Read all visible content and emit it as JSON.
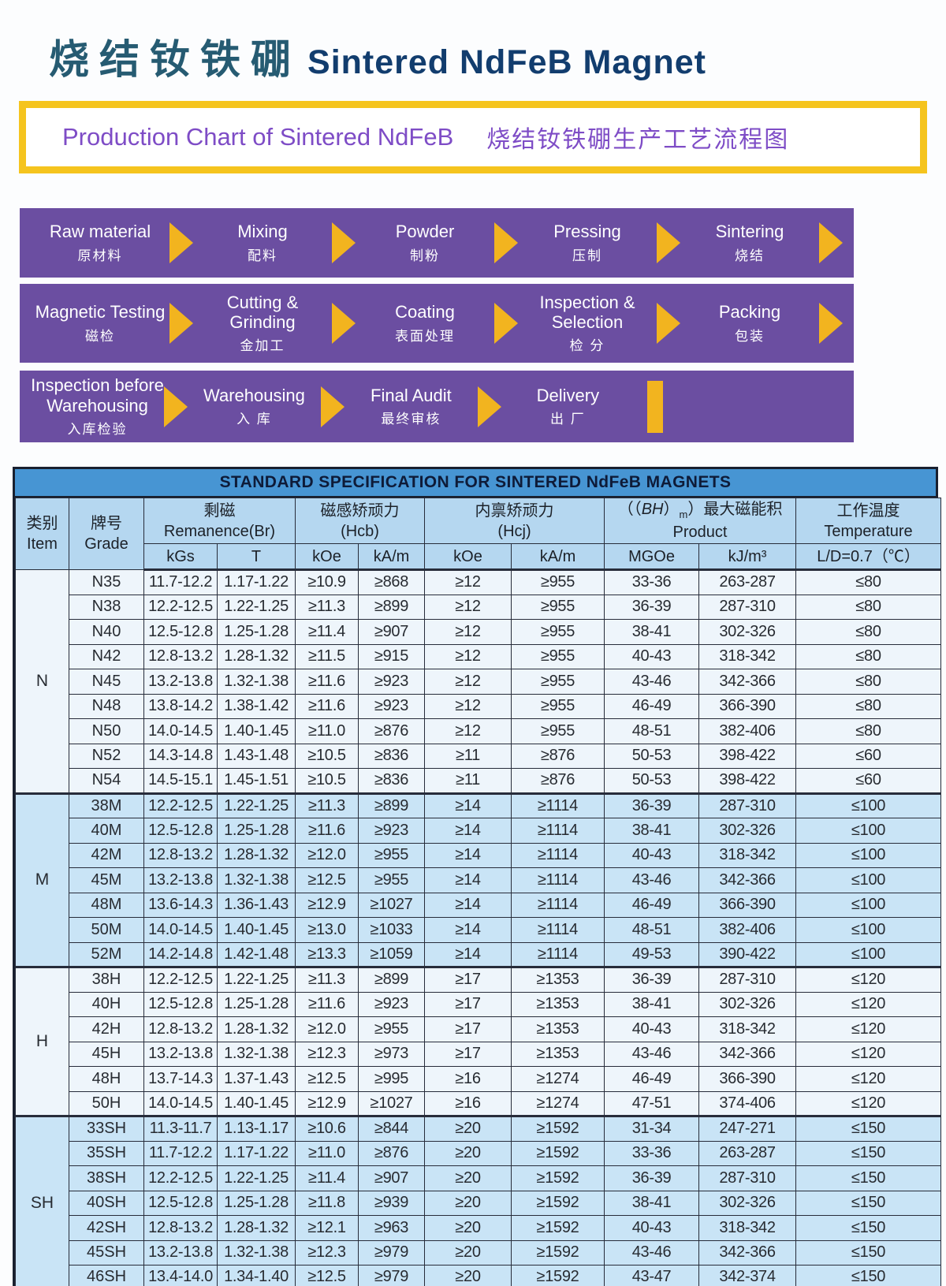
{
  "header": {
    "title_cn": "烧结钕铁硼",
    "title_en": "Sintered NdFeB Magnet"
  },
  "banner": {
    "en": "Production Chart of Sintered NdFeB",
    "cn": "烧结钕铁硼生产工艺流程图"
  },
  "flow": {
    "rows": [
      {
        "end": "arrow",
        "steps": [
          {
            "en": "Raw material",
            "cn": "原材料"
          },
          {
            "en": "Mixing",
            "cn": "配料"
          },
          {
            "en": "Powder",
            "cn": "制粉"
          },
          {
            "en": "Pressing",
            "cn": "压制"
          },
          {
            "en": "Sintering",
            "cn": "烧结"
          }
        ]
      },
      {
        "end": "arrow",
        "steps": [
          {
            "en": "Magnetic Testing",
            "cn": "磁检"
          },
          {
            "en": "Cutting & Grinding",
            "cn": "金加工"
          },
          {
            "en": "Coating",
            "cn": "表面处理"
          },
          {
            "en": "Inspection & Selection",
            "cn": "检 分"
          },
          {
            "en": "Packing",
            "cn": "包装"
          }
        ]
      },
      {
        "end": "bar",
        "steps": [
          {
            "en": "Inspection before Warehousing",
            "cn": "入库检验"
          },
          {
            "en": "Warehousing",
            "cn": "入 库"
          },
          {
            "en": "Final Audit",
            "cn": "最终审核"
          },
          {
            "en": "Delivery",
            "cn": "出 厂"
          }
        ]
      }
    ]
  },
  "table": {
    "title": "STANDARD SPECIFICATION FOR SINTERED NdFeB MAGNETS",
    "columns": {
      "item_cn": "类别",
      "item_en": "Item",
      "grade_cn": "牌号",
      "grade_en": "Grade",
      "remanence_cn": "剩磁",
      "remanence_en": "Remanence(Br)",
      "hcb_cn": "磁感矫顽力",
      "hcb_en": "(Hcb)",
      "hcj_cn": "内禀矫顽力",
      "hcj_en": "(Hcj)",
      "product_pre": "（（",
      "product_bh": "BH",
      "product_mid": "）",
      "product_sub": "m",
      "product_post": "）最大磁能积",
      "product_en": "Product",
      "temperature_cn": "工作温度",
      "temperature_en": "Temperature"
    },
    "units": [
      "kGs",
      "T",
      "kOe",
      "kA/m",
      "kOe",
      "kA/m",
      "MGOe",
      "kJ/m³",
      "L/D=0.7（℃）"
    ],
    "groups": [
      {
        "item": "N",
        "rows": [
          [
            "N35",
            "11.7-12.2",
            "1.17-1.22",
            "≥10.9",
            "≥868",
            "≥12",
            "≥955",
            "33-36",
            "263-287",
            "≤80"
          ],
          [
            "N38",
            "12.2-12.5",
            "1.22-1.25",
            "≥11.3",
            "≥899",
            "≥12",
            "≥955",
            "36-39",
            "287-310",
            "≤80"
          ],
          [
            "N40",
            "12.5-12.8",
            "1.25-1.28",
            "≥11.4",
            "≥907",
            "≥12",
            "≥955",
            "38-41",
            "302-326",
            "≤80"
          ],
          [
            "N42",
            "12.8-13.2",
            "1.28-1.32",
            "≥11.5",
            "≥915",
            "≥12",
            "≥955",
            "40-43",
            "318-342",
            "≤80"
          ],
          [
            "N45",
            "13.2-13.8",
            "1.32-1.38",
            "≥11.6",
            "≥923",
            "≥12",
            "≥955",
            "43-46",
            "342-366",
            "≤80"
          ],
          [
            "N48",
            "13.8-14.2",
            "1.38-1.42",
            "≥11.6",
            "≥923",
            "≥12",
            "≥955",
            "46-49",
            "366-390",
            "≤80"
          ],
          [
            "N50",
            "14.0-14.5",
            "1.40-1.45",
            "≥11.0",
            "≥876",
            "≥12",
            "≥955",
            "48-51",
            "382-406",
            "≤80"
          ],
          [
            "N52",
            "14.3-14.8",
            "1.43-1.48",
            "≥10.5",
            "≥836",
            "≥11",
            "≥876",
            "50-53",
            "398-422",
            "≤60"
          ],
          [
            "N54",
            "14.5-15.1",
            "1.45-1.51",
            "≥10.5",
            "≥836",
            "≥11",
            "≥876",
            "50-53",
            "398-422",
            "≤60"
          ]
        ]
      },
      {
        "item": "M",
        "rows": [
          [
            "38M",
            "12.2-12.5",
            "1.22-1.25",
            "≥11.3",
            "≥899",
            "≥14",
            "≥1114",
            "36-39",
            "287-310",
            "≤100"
          ],
          [
            "40M",
            "12.5-12.8",
            "1.25-1.28",
            "≥11.6",
            "≥923",
            "≥14",
            "≥1114",
            "38-41",
            "302-326",
            "≤100"
          ],
          [
            "42M",
            "12.8-13.2",
            "1.28-1.32",
            "≥12.0",
            "≥955",
            "≥14",
            "≥1114",
            "40-43",
            "318-342",
            "≤100"
          ],
          [
            "45M",
            "13.2-13.8",
            "1.32-1.38",
            "≥12.5",
            "≥955",
            "≥14",
            "≥1114",
            "43-46",
            "342-366",
            "≤100"
          ],
          [
            "48M",
            "13.6-14.3",
            "1.36-1.43",
            "≥12.9",
            "≥1027",
            "≥14",
            "≥1114",
            "46-49",
            "366-390",
            "≤100"
          ],
          [
            "50M",
            "14.0-14.5",
            "1.40-1.45",
            "≥13.0",
            "≥1033",
            "≥14",
            "≥1114",
            "48-51",
            "382-406",
            "≤100"
          ],
          [
            "52M",
            "14.2-14.8",
            "1.42-1.48",
            "≥13.3",
            "≥1059",
            "≥14",
            "≥1114",
            "49-53",
            "390-422",
            "≤100"
          ]
        ]
      },
      {
        "item": "H",
        "rows": [
          [
            "38H",
            "12.2-12.5",
            "1.22-1.25",
            "≥11.3",
            "≥899",
            "≥17",
            "≥1353",
            "36-39",
            "287-310",
            "≤120"
          ],
          [
            "40H",
            "12.5-12.8",
            "1.25-1.28",
            "≥11.6",
            "≥923",
            "≥17",
            "≥1353",
            "38-41",
            "302-326",
            "≤120"
          ],
          [
            "42H",
            "12.8-13.2",
            "1.28-1.32",
            "≥12.0",
            "≥955",
            "≥17",
            "≥1353",
            "40-43",
            "318-342",
            "≤120"
          ],
          [
            "45H",
            "13.2-13.8",
            "1.32-1.38",
            "≥12.3",
            "≥973",
            "≥17",
            "≥1353",
            "43-46",
            "342-366",
            "≤120"
          ],
          [
            "48H",
            "13.7-14.3",
            "1.37-1.43",
            "≥12.5",
            "≥995",
            "≥16",
            "≥1274",
            "46-49",
            "366-390",
            "≤120"
          ],
          [
            "50H",
            "14.0-14.5",
            "1.40-1.45",
            "≥12.9",
            "≥1027",
            "≥16",
            "≥1274",
            "47-51",
            "374-406",
            "≤120"
          ]
        ]
      },
      {
        "item": "SH",
        "rows": [
          [
            "33SH",
            "11.3-11.7",
            "1.13-1.17",
            "≥10.6",
            "≥844",
            "≥20",
            "≥1592",
            "31-34",
            "247-271",
            "≤150"
          ],
          [
            "35SH",
            "11.7-12.2",
            "1.17-1.22",
            "≥11.0",
            "≥876",
            "≥20",
            "≥1592",
            "33-36",
            "263-287",
            "≤150"
          ],
          [
            "38SH",
            "12.2-12.5",
            "1.22-1.25",
            "≥11.4",
            "≥907",
            "≥20",
            "≥1592",
            "36-39",
            "287-310",
            "≤150"
          ],
          [
            "40SH",
            "12.5-12.8",
            "1.25-1.28",
            "≥11.8",
            "≥939",
            "≥20",
            "≥1592",
            "38-41",
            "302-326",
            "≤150"
          ],
          [
            "42SH",
            "12.8-13.2",
            "1.28-1.32",
            "≥12.1",
            "≥963",
            "≥20",
            "≥1592",
            "40-43",
            "318-342",
            "≤150"
          ],
          [
            "45SH",
            "13.2-13.8",
            "1.32-1.38",
            "≥12.3",
            "≥979",
            "≥20",
            "≥1592",
            "43-46",
            "342-366",
            "≤150"
          ],
          [
            "46SH",
            "13.4-14.0",
            "1.34-1.40",
            "≥12.5",
            "≥979",
            "≥20",
            "≥1592",
            "43-47",
            "342-374",
            "≤150"
          ]
        ]
      }
    ]
  },
  "colors": {
    "title_cn": "#265b72",
    "title_en": "#123d6e",
    "banner_border": "#f5c41e",
    "banner_text": "#7e4cc6",
    "flow_bar": "#6b4ea1",
    "flow_arrow": "#f2b41f",
    "table_title_bg": "#4795d3",
    "table_header_bg": "#b5d7f0",
    "row_plain_bg": "#eef5fb",
    "row_tint_bg": "#c9e4f6",
    "table_border": "#272c3a"
  }
}
